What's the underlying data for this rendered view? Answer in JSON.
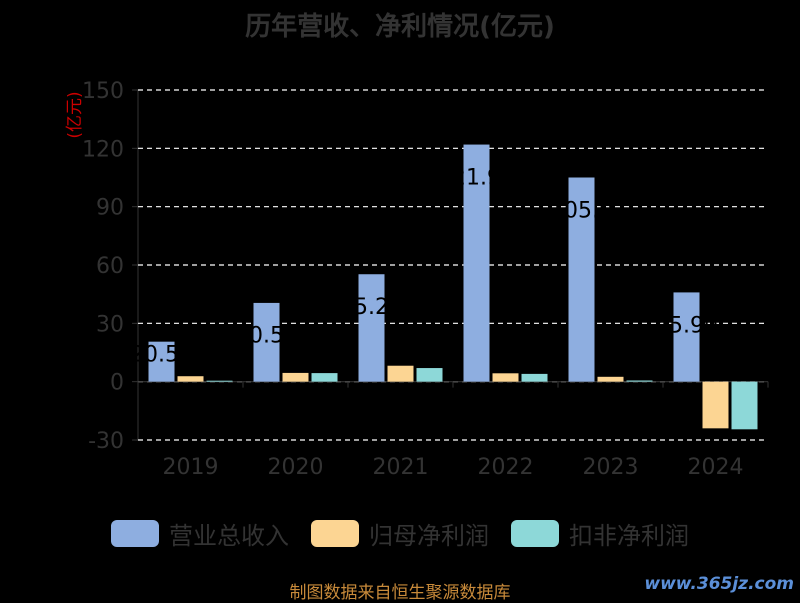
{
  "chart_data": {
    "type": "bar",
    "title": "历年营收、净利情况(亿元)",
    "ylabel": "(亿元)",
    "ylim": [
      -30,
      150
    ],
    "yticks": [
      150,
      120,
      90,
      60,
      30,
      0,
      -30
    ],
    "grid": true,
    "legend_position": "bottom",
    "categories": [
      "2019",
      "2020",
      "2021",
      "2022",
      "2023",
      "2024"
    ],
    "series": [
      {
        "name": "营业总收入",
        "color": "#8eaee0",
        "values": [
          20.57,
          40.5,
          55.25,
          121.94,
          105.0,
          45.9
        ]
      },
      {
        "name": "归母净利润",
        "color": "#fcd593",
        "values": [
          2.8,
          4.5,
          8.2,
          4.3,
          2.5,
          -24
        ]
      },
      {
        "name": "扣非净利润",
        "color": "#8dd8d8",
        "values": [
          0.5,
          4.4,
          7.0,
          4.0,
          0.6,
          -24.5
        ]
      }
    ],
    "data_labels": [
      "20.57",
      "40.50",
      "55.25",
      "121.94",
      "105.0",
      "45.90"
    ],
    "source": "制图数据来自恒生聚源数据库",
    "watermark": "www.365jz.com"
  }
}
